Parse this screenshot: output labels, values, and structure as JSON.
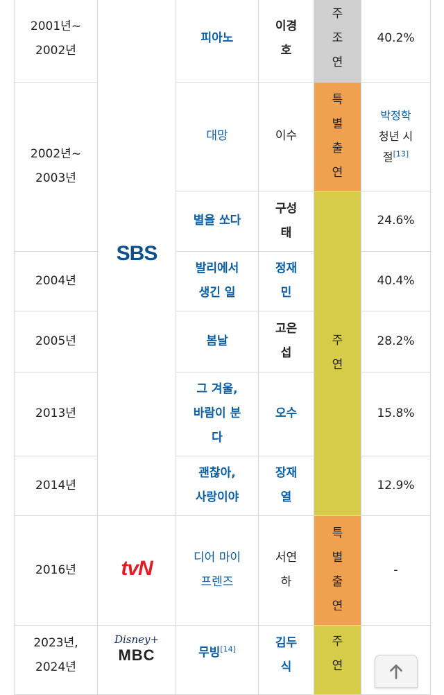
{
  "rows": [
    {
      "year": "2001년~\n2002년",
      "title": "피아노",
      "role": "이경\n호",
      "category": "주\n조\n연",
      "rating": "40.2%"
    },
    {
      "year": "2002년~\n2003년",
      "title": "대망",
      "role": "이수",
      "category": "특\n별\n출\n연",
      "rating_link": "박정학",
      "rating_text": "청년 시\n절",
      "rating_ref": "[13]"
    },
    {
      "title": "별을 쏘다",
      "role": "구성\n태",
      "rating": "24.6%"
    },
    {
      "year": "2004년",
      "title": "발리에서\n생긴 일",
      "role": "정재\n민",
      "category": "주\n연",
      "rating": "40.4%"
    },
    {
      "year": "2005년",
      "title": "봄날",
      "role": "고은\n섭",
      "rating": "28.2%"
    },
    {
      "year": "2013년",
      "title": "그 겨울,\n바람이 분\n다",
      "role": "오수",
      "rating": "15.8%"
    },
    {
      "year": "2014년",
      "title": "괜찮아,\n사랑이야",
      "role": "장재\n열",
      "rating": "12.9%"
    },
    {
      "year": "2016년",
      "title": "디어 마이\n프렌즈",
      "role": "서연\n하",
      "category": "특\n별\n출\n연",
      "rating": "-"
    },
    {
      "year": "2023년,\n2024년",
      "title": "무빙",
      "title_ref": "[14]",
      "role": "김두\n식",
      "category": "주\n연",
      "rating": "-"
    }
  ],
  "broadcasters": {
    "sbs": "SBS",
    "tvn": "tvN",
    "disney": "Disney+",
    "mbc": "MBC"
  },
  "colors": {
    "link": "#0b5fa5",
    "role_gray": "#cfcfcf",
    "role_orange": "#f0a150",
    "role_yellow": "#d6cc4a"
  },
  "icons": {
    "scroll_top": "arrow-up-icon"
  }
}
